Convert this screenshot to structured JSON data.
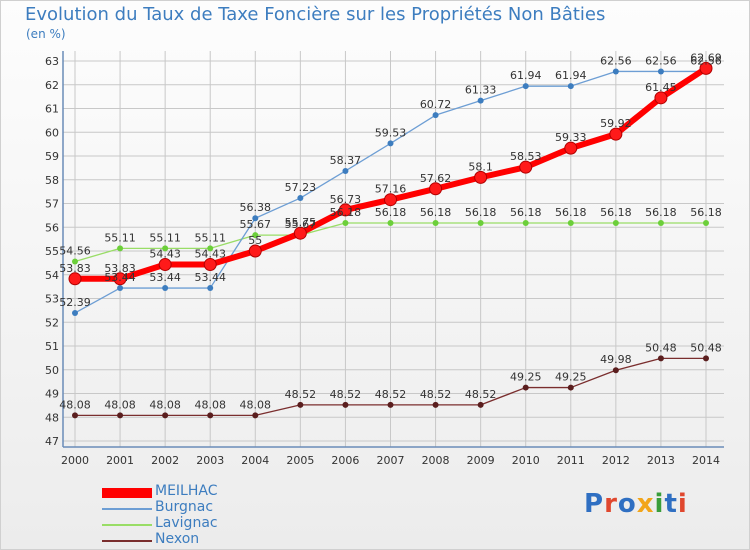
{
  "title": "Evolution du Taux de Taxe Foncière sur les Propriétés Non Bâties",
  "unit_label": "(en %)",
  "logo": {
    "text": "Proxiti",
    "colors": [
      "#2f6fc2",
      "#e0472e",
      "#2f6fc2",
      "#f2a51a",
      "#3a9e3a",
      "#2f6fc2",
      "#e0472e"
    ]
  },
  "colors": {
    "MEILHAC": "#ff0000",
    "Burgnac": "#6d9ed4",
    "Lavignac": "#99dd66",
    "Nexon": "#7a2e2e",
    "axis": "#6a8cb8",
    "grid": "#c8c8c8",
    "text": "#333333"
  },
  "chart_data": {
    "type": "line",
    "title": "Evolution du Taux de Taxe Foncière sur les Propriétés Non Bâties",
    "ylabel": "(en %)",
    "xlabel": "",
    "x": [
      "2000",
      "2001",
      "2002",
      "2003",
      "2004",
      "2005",
      "2006",
      "2007",
      "2008",
      "2009",
      "2010",
      "2011",
      "2012",
      "2013",
      "2014"
    ],
    "ylim": [
      47,
      63
    ],
    "yticks": [
      47,
      48,
      49,
      50,
      51,
      52,
      53,
      54,
      55,
      56,
      57,
      58,
      59,
      60,
      61,
      62,
      63
    ],
    "grid": true,
    "legend": "bottom-left",
    "series": [
      {
        "name": "MEILHAC",
        "values": [
          53.83,
          53.83,
          54.43,
          54.43,
          55.0,
          55.75,
          56.73,
          57.16,
          57.62,
          58.1,
          58.53,
          59.33,
          59.92,
          61.45,
          62.69
        ],
        "labels": [
          "53.83",
          "53.83",
          "54.43",
          "54.43",
          "55",
          "55.75",
          "56.73",
          "57.16",
          "57.62",
          "58.1",
          "58.53",
          "59.33",
          "59.92",
          "61.45",
          "62.69"
        ]
      },
      {
        "name": "Burgnac",
        "values": [
          52.39,
          53.44,
          53.44,
          53.44,
          56.38,
          57.23,
          58.37,
          59.53,
          60.72,
          61.33,
          61.94,
          61.94,
          62.56,
          62.56,
          62.56
        ],
        "labels": [
          "52.39",
          "53.44",
          "53.44",
          "53.44",
          "56.38",
          "57.23",
          "58.37",
          "59.53",
          "60.72",
          "61.33",
          "61.94",
          "61.94",
          "62.56",
          "62.56",
          "62.56"
        ]
      },
      {
        "name": "Lavignac",
        "values": [
          54.56,
          55.11,
          55.11,
          55.11,
          55.67,
          55.67,
          56.18,
          56.18,
          56.18,
          56.18,
          56.18,
          56.18,
          56.18,
          56.18,
          56.18
        ],
        "labels": [
          "54.56",
          "55.11",
          "55.11",
          "55.11",
          "55.67",
          "55.67",
          "56.18",
          "56.18",
          "56.18",
          "56.18",
          "56.18",
          "56.18",
          "56.18",
          "56.18",
          "56.18"
        ]
      },
      {
        "name": "Nexon",
        "values": [
          48.08,
          48.08,
          48.08,
          48.08,
          48.08,
          48.52,
          48.52,
          48.52,
          48.52,
          48.52,
          49.25,
          49.25,
          49.98,
          50.48,
          50.48
        ],
        "labels": [
          "48.08",
          "48.08",
          "48.08",
          "48.08",
          "48.08",
          "48.52",
          "48.52",
          "48.52",
          "48.52",
          "48.52",
          "49.25",
          "49.25",
          "49.98",
          "50.48",
          "50.48"
        ]
      }
    ]
  }
}
